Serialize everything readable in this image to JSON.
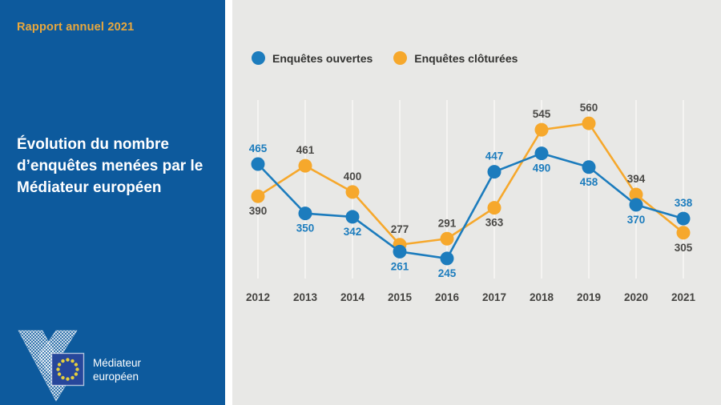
{
  "sidebar": {
    "eyebrow": "Rapport annuel 2021",
    "title": "Évolution du nombre d’enquêtes menées par le Médiateur européen",
    "logo": {
      "name_line1": "Médiateur",
      "name_line2": "européen"
    }
  },
  "chart_data": {
    "type": "line",
    "categories": [
      "2012",
      "2013",
      "2014",
      "2015",
      "2016",
      "2017",
      "2018",
      "2019",
      "2020",
      "2021"
    ],
    "series": [
      {
        "name": "Enquêtes ouvertes",
        "color": "#1c7cbd",
        "label_color": "#1c7cbd",
        "values": [
          465,
          350,
          342,
          261,
          245,
          447,
          490,
          458,
          370,
          338
        ]
      },
      {
        "name": "Enquêtes clôturées",
        "color": "#f6a82c",
        "label_color": "#4a4946",
        "values": [
          390,
          461,
          400,
          277,
          291,
          363,
          545,
          560,
          394,
          305
        ]
      }
    ],
    "title": "",
    "xlabel": "",
    "ylabel": "",
    "ylim": [
      200,
      600
    ],
    "grid": "vertical-only",
    "legend_position": "top",
    "data_labels": "shown"
  },
  "colors": {
    "sidebar_bg": "#0d5a9d",
    "panel_bg": "#e8e8e6",
    "eyebrow_text": "#e9a83d",
    "gridline": "#f5f4f2",
    "axis_text": "#454441",
    "flag_blue": "#27479b",
    "flag_stars": "#e6cf3e"
  }
}
